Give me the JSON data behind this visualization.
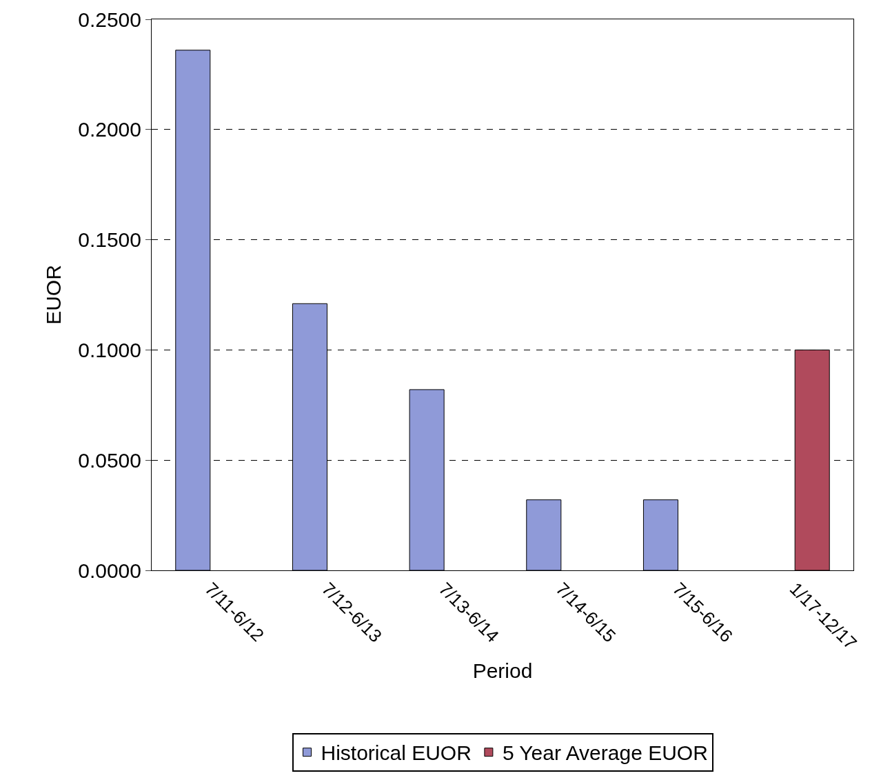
{
  "chart_data": {
    "type": "bar",
    "xlabel": "Period",
    "ylabel": "EUOR",
    "categories": [
      "7/11-6/12",
      "7/12-6/13",
      "7/13-6/14",
      "7/14-6/15",
      "7/15-6/16",
      "1/17-12/17"
    ],
    "series": [
      {
        "name": "Historical EUOR",
        "color": "#8f9ad8",
        "values": [
          0.236,
          0.121,
          0.082,
          0.032,
          0.032,
          null
        ]
      },
      {
        "name": "5 Year Average EUOR",
        "color": "#b04a5c",
        "values": [
          null,
          null,
          null,
          null,
          null,
          0.1
        ]
      }
    ],
    "ylim": [
      0,
      0.25
    ],
    "yticks": [
      {
        "value": 0,
        "label": "0.0000"
      },
      {
        "value": 0.05,
        "label": "0.0500"
      },
      {
        "value": 0.1,
        "label": "0.1000"
      },
      {
        "value": 0.15,
        "label": "0.1500"
      },
      {
        "value": 0.2,
        "label": "0.2000"
      },
      {
        "value": 0.25,
        "label": "0.2500"
      }
    ],
    "grid": "y",
    "legend": "bottom"
  }
}
